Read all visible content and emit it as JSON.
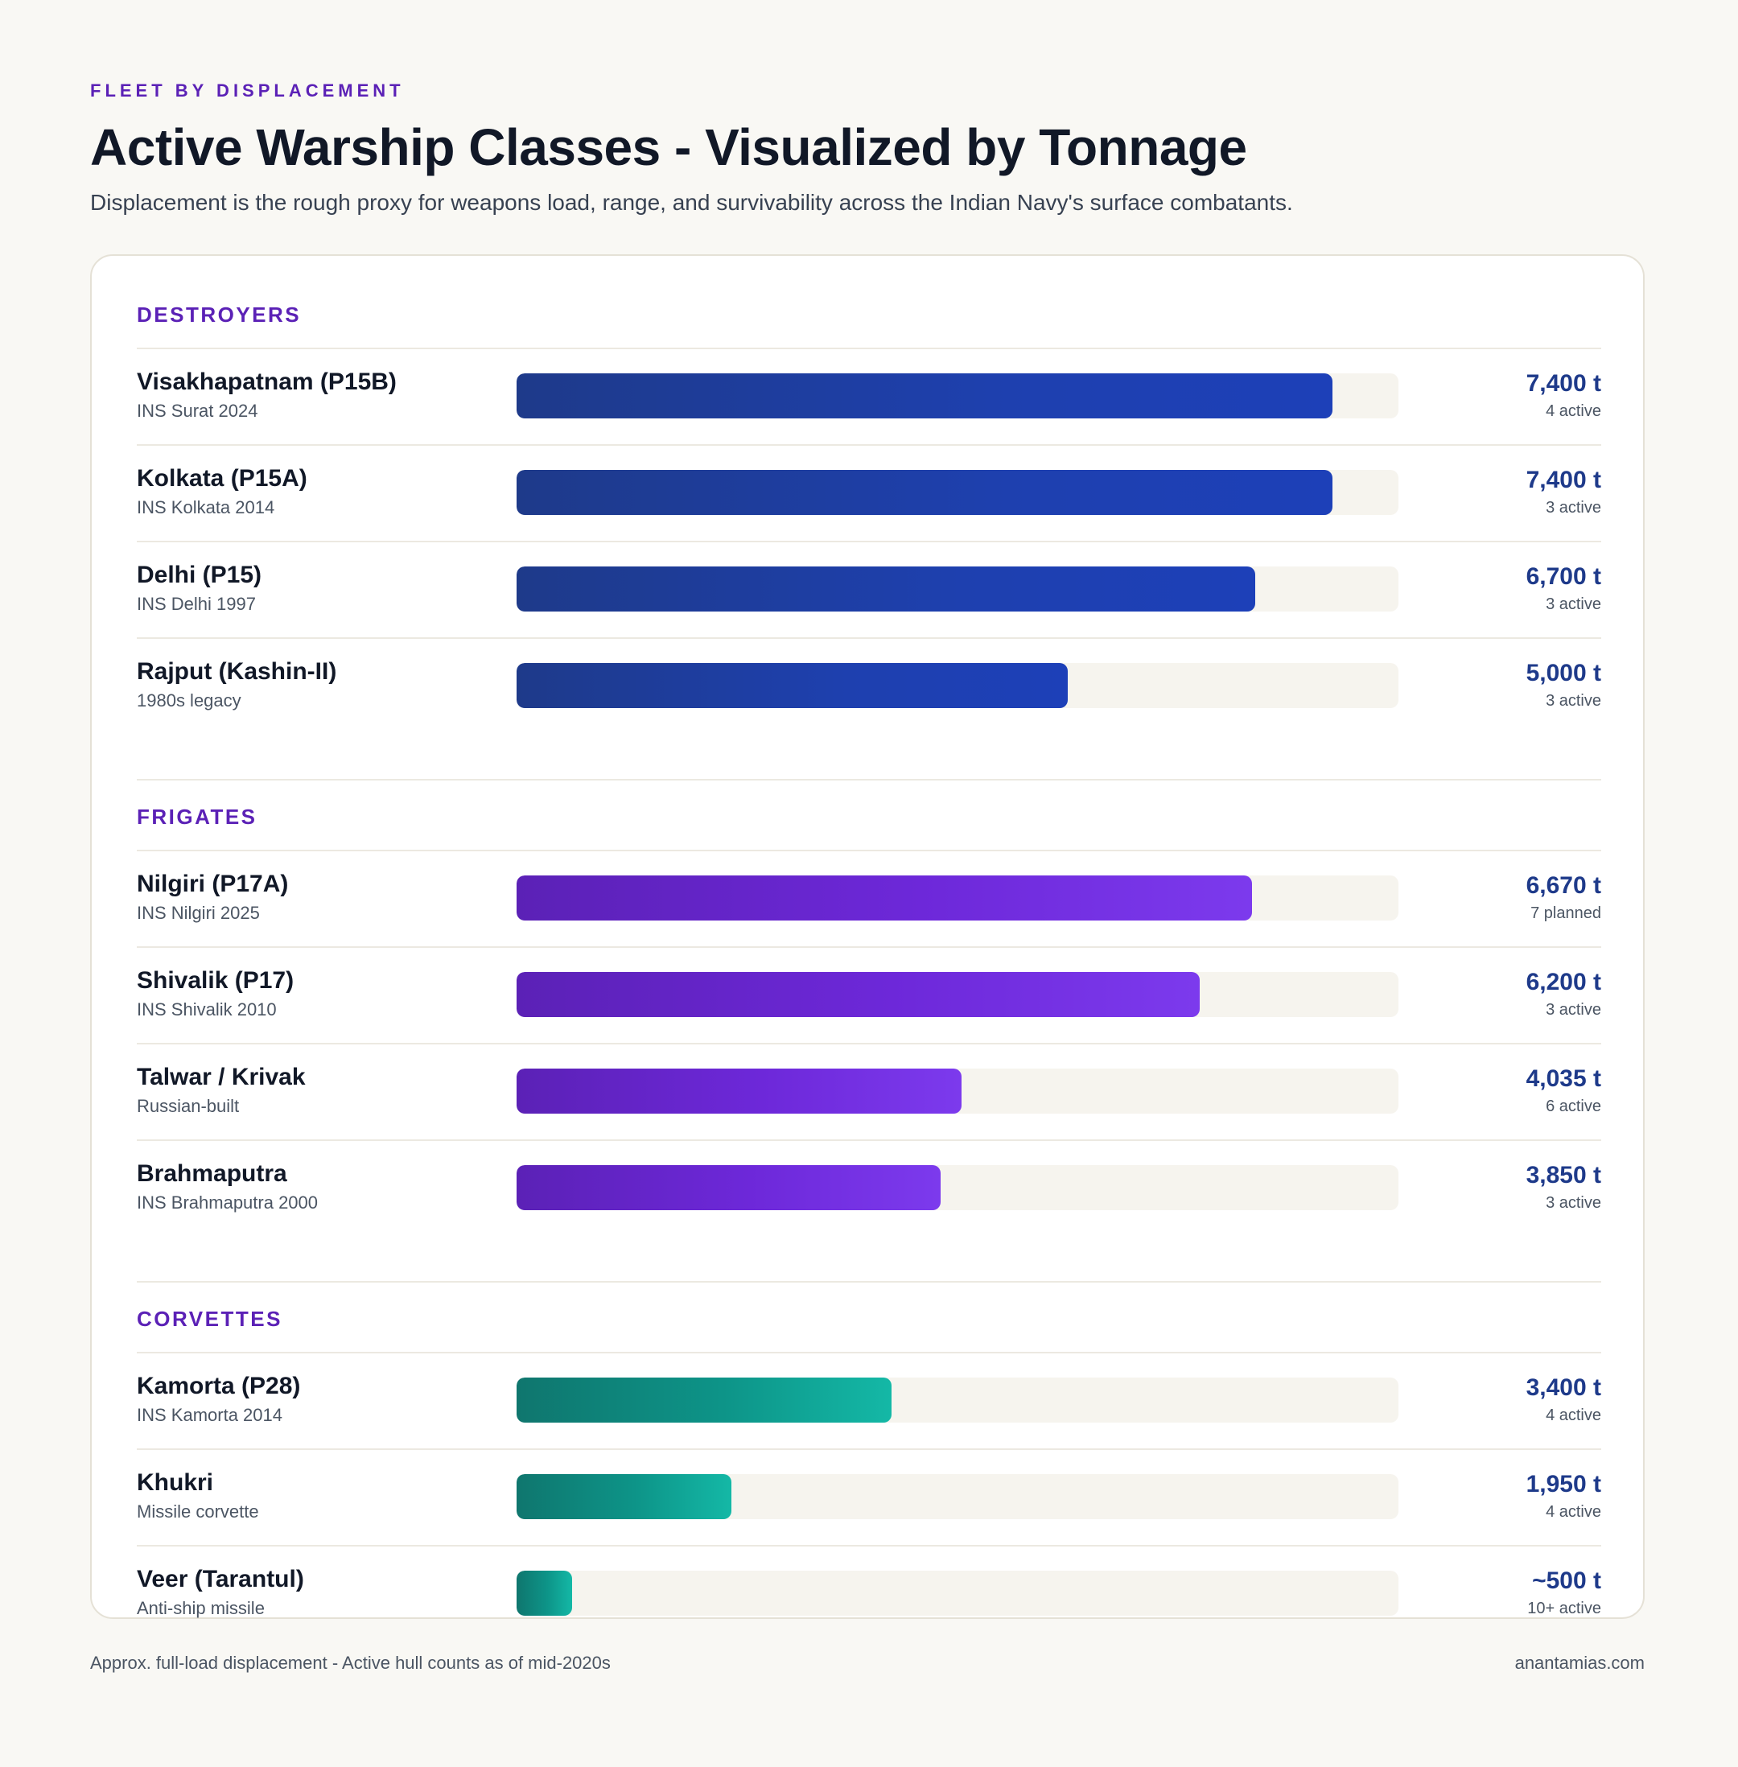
{
  "header": {
    "eyebrow": "FLEET BY DISPLACEMENT",
    "title": "Active Warship Classes - Visualized by Tonnage",
    "subtitle": "Displacement is the rough proxy for weapons load, range, and survivability across the Indian Navy's surface combatants."
  },
  "footer": {
    "note": "Approx. full-load displacement - Active hull counts as of mid-2020s",
    "credit": "anantamias.com"
  },
  "colors": {
    "destroyers": "#1e40af",
    "frigates": "#6d28d9",
    "corvettes": "#0d9488",
    "section_label": "#5b21b6",
    "value_text": "#1e3a8a"
  },
  "chart_data": {
    "type": "bar",
    "orientation": "horizontal",
    "title": "Active Warship Classes - Visualized by Tonnage",
    "xlim": [
      0,
      8000
    ],
    "grid": false,
    "groups": [
      {
        "name": "DESTROYERS",
        "color_key": "destroyers",
        "items": [
          {
            "name": "Visakhapatnam (P15B)",
            "sub": "INS Surat 2024",
            "value": 7400,
            "value_label": "7,400 t",
            "count_label": "4 active"
          },
          {
            "name": "Kolkata (P15A)",
            "sub": "INS Kolkata 2014",
            "value": 7400,
            "value_label": "7,400 t",
            "count_label": "3 active"
          },
          {
            "name": "Delhi (P15)",
            "sub": "INS Delhi 1997",
            "value": 6700,
            "value_label": "6,700 t",
            "count_label": "3 active"
          },
          {
            "name": "Rajput (Kashin-II)",
            "sub": "1980s legacy",
            "value": 5000,
            "value_label": "5,000 t",
            "count_label": "3 active"
          }
        ]
      },
      {
        "name": "FRIGATES",
        "color_key": "frigates",
        "items": [
          {
            "name": "Nilgiri (P17A)",
            "sub": "INS Nilgiri 2025",
            "value": 6670,
            "value_label": "6,670 t",
            "count_label": "7 planned"
          },
          {
            "name": "Shivalik (P17)",
            "sub": "INS Shivalik 2010",
            "value": 6200,
            "value_label": "6,200 t",
            "count_label": "3 active"
          },
          {
            "name": "Talwar / Krivak",
            "sub": "Russian-built",
            "value": 4035,
            "value_label": "4,035 t",
            "count_label": "6 active"
          },
          {
            "name": "Brahmaputra",
            "sub": "INS Brahmaputra 2000",
            "value": 3850,
            "value_label": "3,850 t",
            "count_label": "3 active"
          }
        ]
      },
      {
        "name": "CORVETTES",
        "color_key": "corvettes",
        "items": [
          {
            "name": "Kamorta (P28)",
            "sub": "INS Kamorta 2014",
            "value": 3400,
            "value_label": "3,400 t",
            "count_label": "4 active"
          },
          {
            "name": "Khukri",
            "sub": "Missile corvette",
            "value": 1950,
            "value_label": "1,950 t",
            "count_label": "4 active"
          },
          {
            "name": "Veer (Tarantul)",
            "sub": "Anti-ship missile",
            "value": 500,
            "value_label": "~500 t",
            "count_label": "10+ active"
          }
        ]
      }
    ]
  }
}
